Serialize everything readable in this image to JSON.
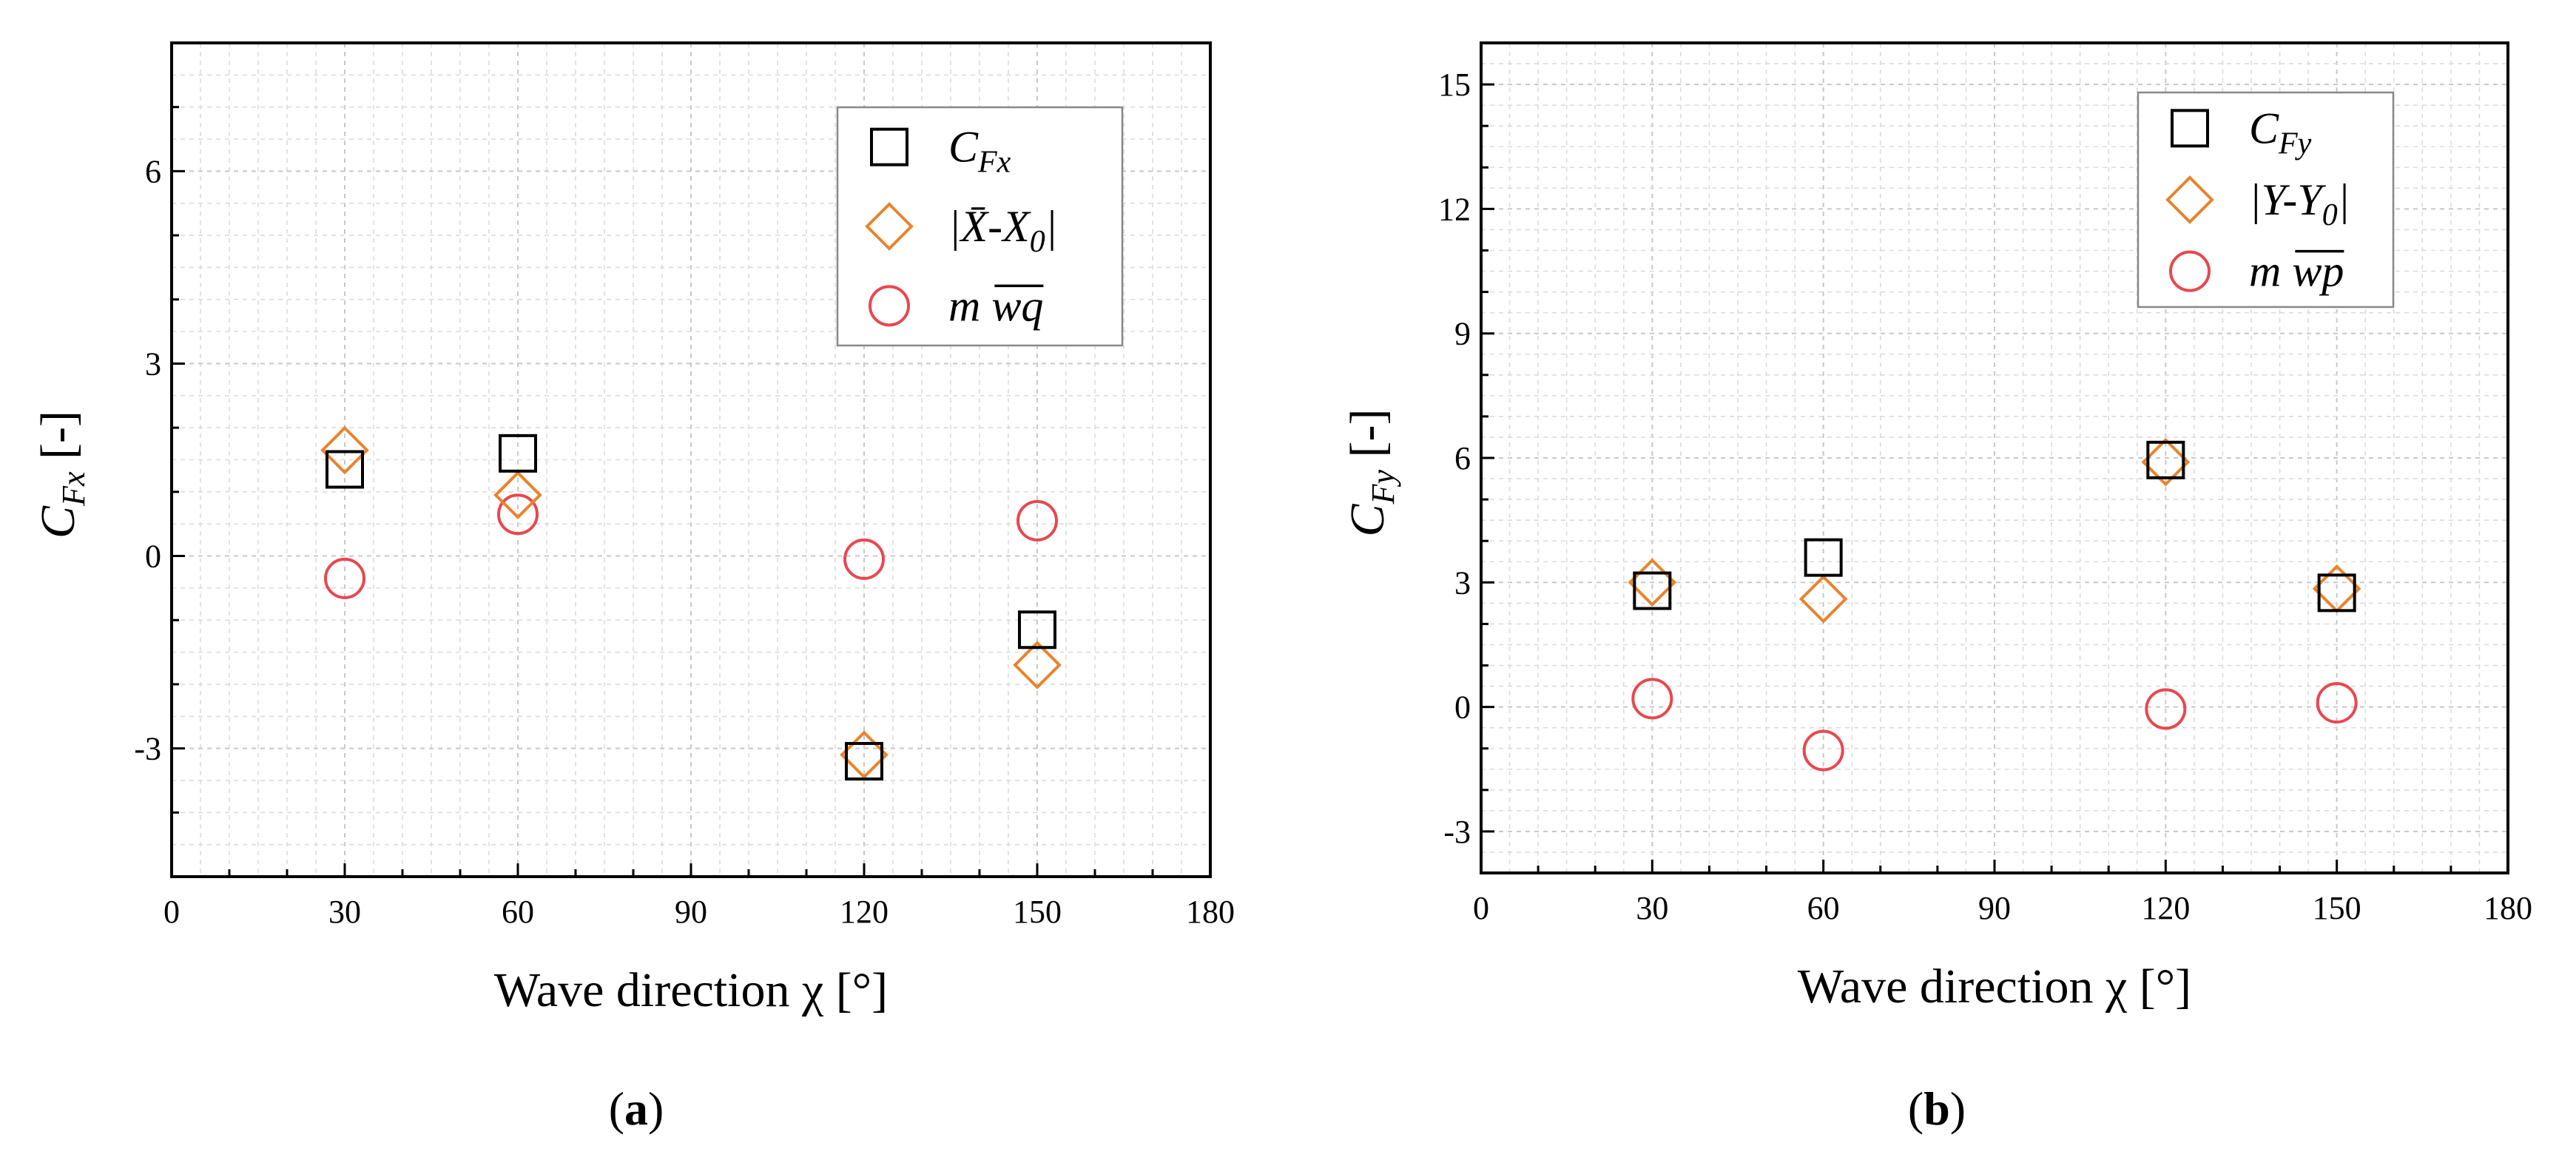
{
  "chart_data": [
    {
      "id": "a",
      "type": "scatter",
      "caption": "(a)",
      "caption_letter": "a",
      "xlabel": "Wave direction χ [°]",
      "ylabel": "C_Fx [-]",
      "ylabel_main": "C",
      "ylabel_sub": "Fx",
      "ylabel_unit": "[-]",
      "xlim": [
        0,
        180
      ],
      "ylim": [
        -5,
        8
      ],
      "xticks": [
        0,
        30,
        60,
        90,
        120,
        150,
        180
      ],
      "yticks": [
        -3,
        0,
        3,
        6
      ],
      "grid": true,
      "legend_position": "top-right",
      "series": [
        {
          "name": "C_Fx",
          "legend_main": "C",
          "legend_sub": "Fx",
          "marker": "square",
          "color": "#000000",
          "x": [
            30,
            60,
            120,
            150
          ],
          "y": [
            1.35,
            1.6,
            -3.2,
            -1.15
          ]
        },
        {
          "name": "|X̄-X0|",
          "legend_main": "|X̄-X",
          "legend_sub": "0",
          "legend_tail": "|",
          "marker": "diamond",
          "color": "#E8842C",
          "x": [
            30,
            60,
            120,
            150
          ],
          "y": [
            1.65,
            0.95,
            -3.1,
            -1.7
          ]
        },
        {
          "name": "m wq̄",
          "legend_main": "m ",
          "legend_over": "wq",
          "marker": "circle",
          "color": "#E8484F",
          "x": [
            30,
            60,
            120,
            150
          ],
          "y": [
            -0.35,
            0.65,
            -0.05,
            0.55
          ]
        }
      ]
    },
    {
      "id": "b",
      "type": "scatter",
      "caption": "(b)",
      "caption_letter": "b",
      "xlabel": "Wave direction χ [°]",
      "ylabel": "C_Fy [-]",
      "ylabel_main": "C",
      "ylabel_sub": "Fy",
      "ylabel_unit": "[-]",
      "xlim": [
        0,
        180
      ],
      "ylim": [
        -4,
        16
      ],
      "xticks": [
        0,
        30,
        60,
        90,
        120,
        150,
        180
      ],
      "yticks": [
        -3,
        0,
        3,
        6,
        9,
        12,
        15
      ],
      "grid": true,
      "legend_position": "top-right",
      "series": [
        {
          "name": "C_Fy",
          "legend_main": "C",
          "legend_sub": "Fy",
          "marker": "square",
          "color": "#000000",
          "x": [
            30,
            60,
            120,
            150
          ],
          "y": [
            2.8,
            3.6,
            5.95,
            2.75
          ]
        },
        {
          "name": "|Y-Y0|",
          "legend_main": "|Y-Y",
          "legend_sub": "0",
          "legend_tail": "|",
          "marker": "diamond",
          "color": "#E8842C",
          "x": [
            30,
            60,
            120,
            150
          ],
          "y": [
            3.0,
            2.6,
            5.9,
            2.85
          ]
        },
        {
          "name": "m wp̄",
          "legend_main": "m ",
          "legend_over": "wp",
          "marker": "circle",
          "color": "#E8484F",
          "x": [
            30,
            60,
            120,
            150
          ],
          "y": [
            0.2,
            -1.05,
            -0.05,
            0.1
          ]
        }
      ]
    }
  ]
}
